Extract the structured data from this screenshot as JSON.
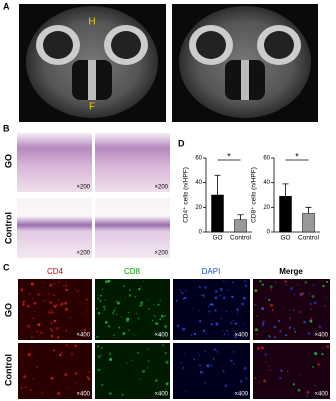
{
  "figure": {
    "panel_labels": [
      "A",
      "B",
      "C",
      "D"
    ],
    "ct_labels": [
      "H",
      "F"
    ],
    "row_labels_b": [
      "GO",
      "Control"
    ],
    "magnification_b": "×200",
    "column_labels_c": [
      "CD4",
      "CD8",
      "DAPI",
      "Merge"
    ],
    "row_labels_c": [
      "GO",
      "Control"
    ],
    "magnification_c": "×400"
  },
  "chart_data": [
    {
      "type": "bar",
      "y_label": "CD4⁺ cells (n/HPF)",
      "categories": [
        "GO",
        "Control"
      ],
      "values": [
        30,
        10
      ],
      "errors": [
        16,
        4
      ],
      "colors": [
        "#000000",
        "#999999"
      ],
      "ylim": [
        0,
        60
      ],
      "yticks": [
        0,
        20,
        40,
        60
      ],
      "significance": "*"
    },
    {
      "type": "bar",
      "y_label": "CD8⁺ cells (n/HPF)",
      "categories": [
        "GO",
        "Control"
      ],
      "values": [
        29,
        15
      ],
      "errors": [
        10,
        5
      ],
      "colors": [
        "#000000",
        "#999999"
      ],
      "ylim": [
        0,
        60
      ],
      "yticks": [
        0,
        20,
        40,
        60
      ],
      "significance": "*"
    }
  ]
}
